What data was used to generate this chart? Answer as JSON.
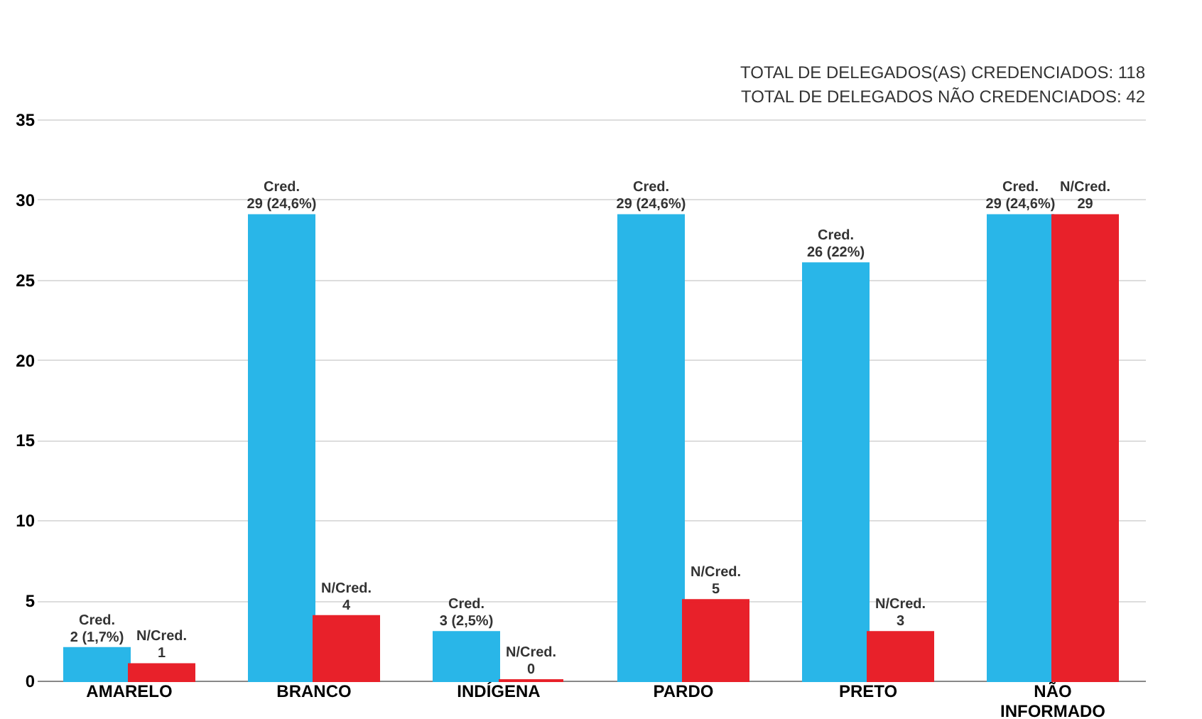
{
  "chart_data": {
    "type": "bar",
    "categories": [
      "AMARELO",
      "BRANCO",
      "INDÍGENA",
      "PARDO",
      "PRETO",
      "NÃO INFORMADO"
    ],
    "series": [
      {
        "color": "#29b6e8",
        "values": [
          2,
          29,
          3,
          29,
          26,
          29
        ],
        "value_labels": [
          "Cred.\n2 (1,7%)",
          "Cred.\n29 (24,6%)",
          "Cred.\n3 (2,5%)",
          "Cred.\n29 (24,6%)",
          "Cred.\n26 (22%)",
          "Cred.\n29 (24,6%)"
        ]
      },
      {
        "color": "#e8212a",
        "values": [
          1,
          4,
          0,
          5,
          3,
          29
        ],
        "value_labels": [
          "N/Cred.\n1",
          "N/Cred.\n4",
          "N/Cred.\n0",
          "N/Cred.\n5",
          "N/Cred.\n3",
          "N/Cred.\n29"
        ]
      }
    ],
    "ylim": [
      0,
      35
    ],
    "yticks": [
      0,
      5,
      10,
      15,
      20,
      25,
      30,
      35
    ],
    "grid": "y",
    "annotations": [
      "TOTAL DE DELEGADOS(AS) CREDENCIADOS: 118",
      "TOTAL DE DELEGADOS NÃO CREDENCIADOS: 42"
    ]
  }
}
